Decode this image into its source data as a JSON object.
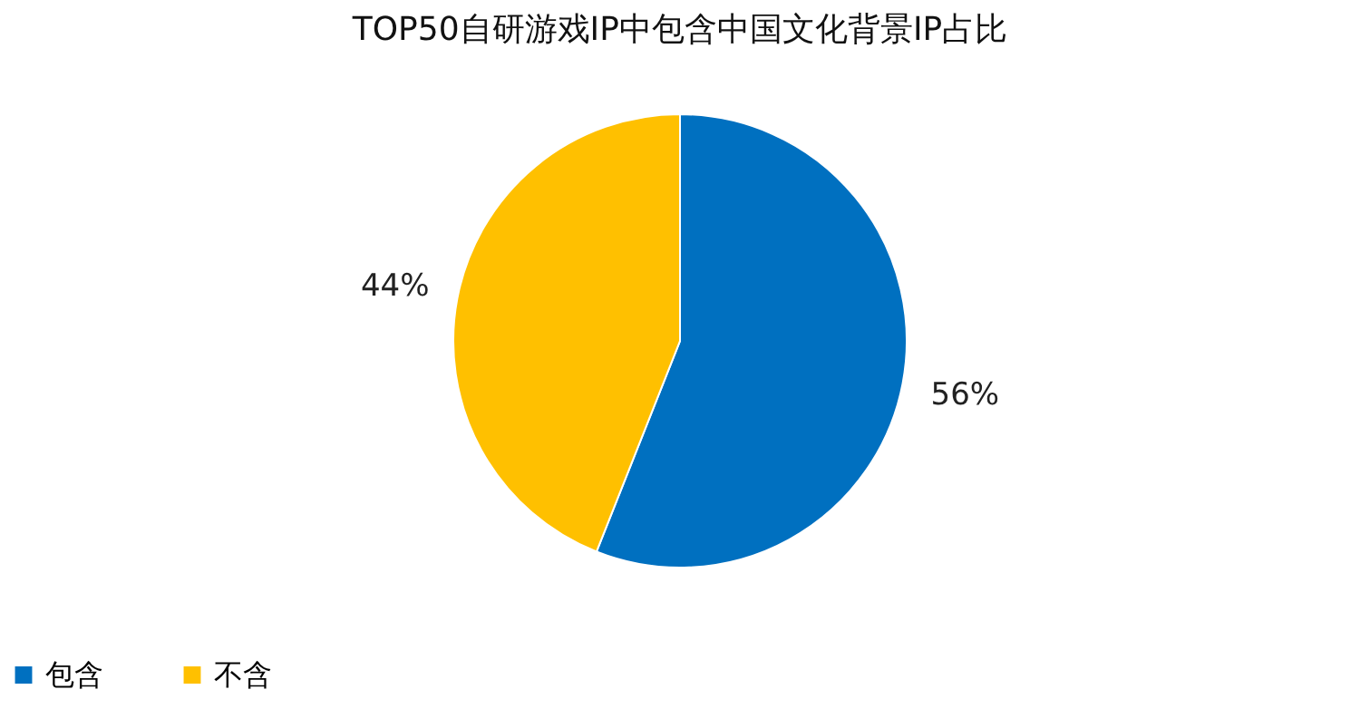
{
  "chart_data": {
    "type": "pie",
    "title": "TOP50自研游戏IP中包含中国文化背景IP占比",
    "categories": [
      "包含",
      "不含"
    ],
    "values": [
      56,
      44
    ],
    "colors": [
      "#0070c0",
      "#ffc000"
    ],
    "value_labels": [
      "56%",
      "44%"
    ],
    "legend": "bottom"
  }
}
